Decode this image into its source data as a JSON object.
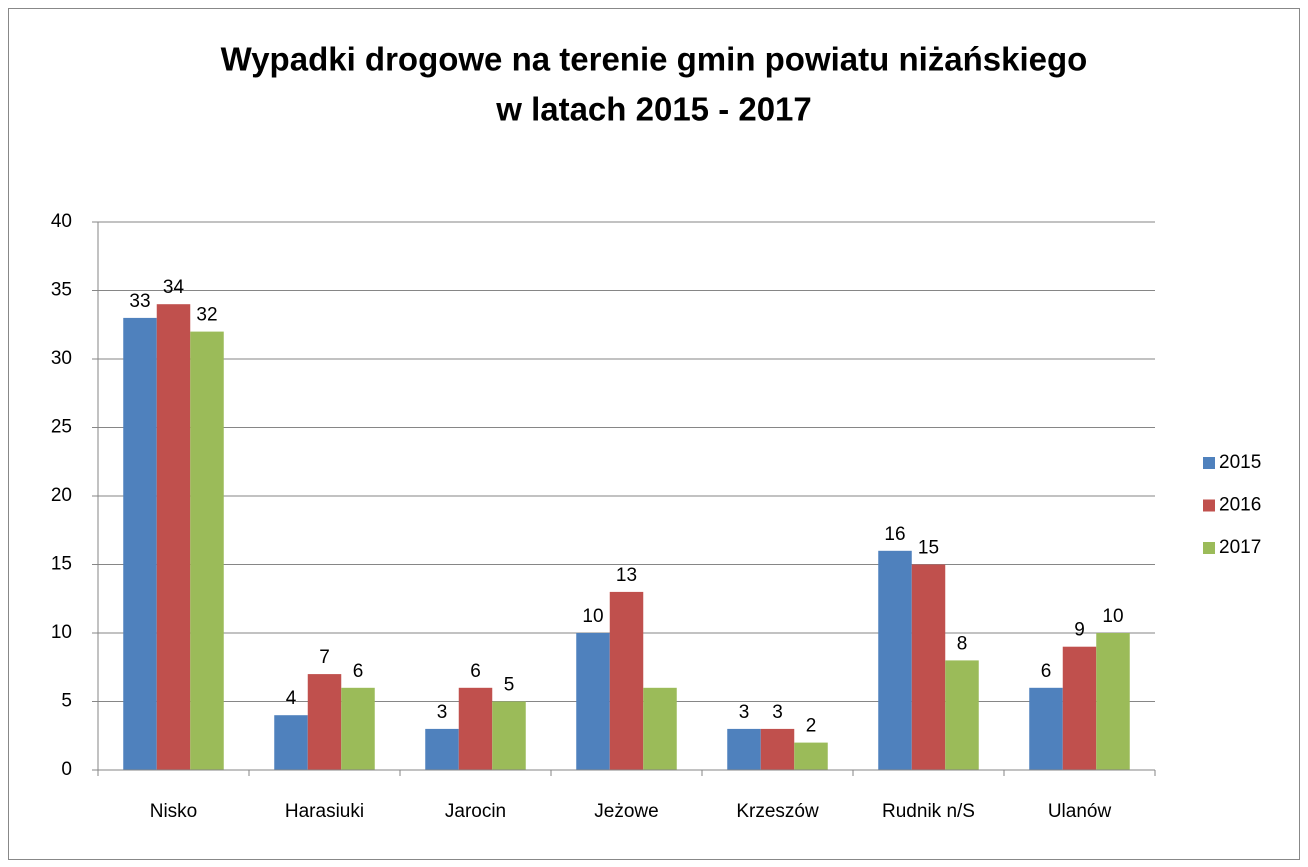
{
  "chart_data": {
    "type": "bar",
    "title": [
      "Wypadki drogowe na terenie gmin powiatu niżańskiego",
      "w latach 2015 - 2017"
    ],
    "categories": [
      "Nisko",
      "Harasiuki",
      "Jarocin",
      "Jeżowe",
      "Krzeszów",
      "Rudnik n/S",
      "Ulanów"
    ],
    "series": [
      {
        "name": "2015",
        "color": "#4f81bd",
        "values": [
          33,
          4,
          3,
          10,
          3,
          16,
          6
        ]
      },
      {
        "name": "2016",
        "color": "#c0504d",
        "values": [
          34,
          7,
          6,
          13,
          3,
          15,
          9
        ]
      },
      {
        "name": "2017",
        "color": "#9bbb59",
        "values": [
          32,
          6,
          5,
          6,
          2,
          8,
          10
        ],
        "value_labels": [
          32,
          6,
          5,
          null,
          2,
          8,
          10
        ]
      }
    ],
    "ylim": [
      0,
      40
    ],
    "yticks": [
      0,
      5,
      10,
      15,
      20,
      25,
      30,
      35,
      40
    ],
    "grid": true,
    "legend": "right"
  }
}
